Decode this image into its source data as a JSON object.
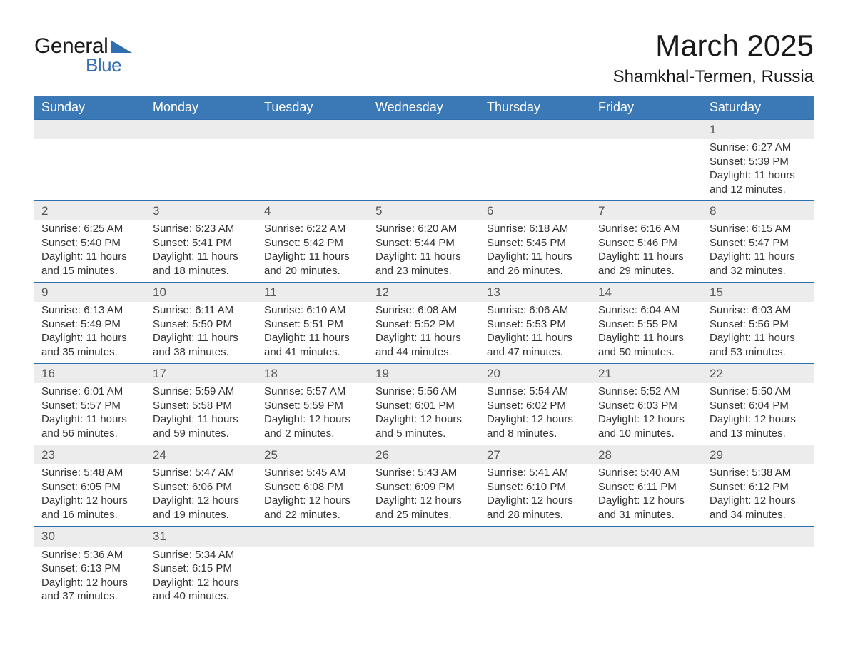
{
  "logo": {
    "text1": "General",
    "text2": "Blue",
    "shape_color": "#2f6fb0"
  },
  "title": {
    "month": "March 2025",
    "location": "Shamkhal-Termen, Russia"
  },
  "colors": {
    "header_bg": "#3b78b6",
    "header_text": "#ffffff",
    "daynum_bg": "#ececec",
    "row_border": "#2f6fb0",
    "body_text": "#333333",
    "daynum_text": "#555555"
  },
  "weekdays": [
    "Sunday",
    "Monday",
    "Tuesday",
    "Wednesday",
    "Thursday",
    "Friday",
    "Saturday"
  ],
  "weeks": [
    [
      null,
      null,
      null,
      null,
      null,
      null,
      {
        "n": "1",
        "sunrise": "Sunrise: 6:27 AM",
        "sunset": "Sunset: 5:39 PM",
        "day1": "Daylight: 11 hours",
        "day2": "and 12 minutes."
      }
    ],
    [
      {
        "n": "2",
        "sunrise": "Sunrise: 6:25 AM",
        "sunset": "Sunset: 5:40 PM",
        "day1": "Daylight: 11 hours",
        "day2": "and 15 minutes."
      },
      {
        "n": "3",
        "sunrise": "Sunrise: 6:23 AM",
        "sunset": "Sunset: 5:41 PM",
        "day1": "Daylight: 11 hours",
        "day2": "and 18 minutes."
      },
      {
        "n": "4",
        "sunrise": "Sunrise: 6:22 AM",
        "sunset": "Sunset: 5:42 PM",
        "day1": "Daylight: 11 hours",
        "day2": "and 20 minutes."
      },
      {
        "n": "5",
        "sunrise": "Sunrise: 6:20 AM",
        "sunset": "Sunset: 5:44 PM",
        "day1": "Daylight: 11 hours",
        "day2": "and 23 minutes."
      },
      {
        "n": "6",
        "sunrise": "Sunrise: 6:18 AM",
        "sunset": "Sunset: 5:45 PM",
        "day1": "Daylight: 11 hours",
        "day2": "and 26 minutes."
      },
      {
        "n": "7",
        "sunrise": "Sunrise: 6:16 AM",
        "sunset": "Sunset: 5:46 PM",
        "day1": "Daylight: 11 hours",
        "day2": "and 29 minutes."
      },
      {
        "n": "8",
        "sunrise": "Sunrise: 6:15 AM",
        "sunset": "Sunset: 5:47 PM",
        "day1": "Daylight: 11 hours",
        "day2": "and 32 minutes."
      }
    ],
    [
      {
        "n": "9",
        "sunrise": "Sunrise: 6:13 AM",
        "sunset": "Sunset: 5:49 PM",
        "day1": "Daylight: 11 hours",
        "day2": "and 35 minutes."
      },
      {
        "n": "10",
        "sunrise": "Sunrise: 6:11 AM",
        "sunset": "Sunset: 5:50 PM",
        "day1": "Daylight: 11 hours",
        "day2": "and 38 minutes."
      },
      {
        "n": "11",
        "sunrise": "Sunrise: 6:10 AM",
        "sunset": "Sunset: 5:51 PM",
        "day1": "Daylight: 11 hours",
        "day2": "and 41 minutes."
      },
      {
        "n": "12",
        "sunrise": "Sunrise: 6:08 AM",
        "sunset": "Sunset: 5:52 PM",
        "day1": "Daylight: 11 hours",
        "day2": "and 44 minutes."
      },
      {
        "n": "13",
        "sunrise": "Sunrise: 6:06 AM",
        "sunset": "Sunset: 5:53 PM",
        "day1": "Daylight: 11 hours",
        "day2": "and 47 minutes."
      },
      {
        "n": "14",
        "sunrise": "Sunrise: 6:04 AM",
        "sunset": "Sunset: 5:55 PM",
        "day1": "Daylight: 11 hours",
        "day2": "and 50 minutes."
      },
      {
        "n": "15",
        "sunrise": "Sunrise: 6:03 AM",
        "sunset": "Sunset: 5:56 PM",
        "day1": "Daylight: 11 hours",
        "day2": "and 53 minutes."
      }
    ],
    [
      {
        "n": "16",
        "sunrise": "Sunrise: 6:01 AM",
        "sunset": "Sunset: 5:57 PM",
        "day1": "Daylight: 11 hours",
        "day2": "and 56 minutes."
      },
      {
        "n": "17",
        "sunrise": "Sunrise: 5:59 AM",
        "sunset": "Sunset: 5:58 PM",
        "day1": "Daylight: 11 hours",
        "day2": "and 59 minutes."
      },
      {
        "n": "18",
        "sunrise": "Sunrise: 5:57 AM",
        "sunset": "Sunset: 5:59 PM",
        "day1": "Daylight: 12 hours",
        "day2": "and 2 minutes."
      },
      {
        "n": "19",
        "sunrise": "Sunrise: 5:56 AM",
        "sunset": "Sunset: 6:01 PM",
        "day1": "Daylight: 12 hours",
        "day2": "and 5 minutes."
      },
      {
        "n": "20",
        "sunrise": "Sunrise: 5:54 AM",
        "sunset": "Sunset: 6:02 PM",
        "day1": "Daylight: 12 hours",
        "day2": "and 8 minutes."
      },
      {
        "n": "21",
        "sunrise": "Sunrise: 5:52 AM",
        "sunset": "Sunset: 6:03 PM",
        "day1": "Daylight: 12 hours",
        "day2": "and 10 minutes."
      },
      {
        "n": "22",
        "sunrise": "Sunrise: 5:50 AM",
        "sunset": "Sunset: 6:04 PM",
        "day1": "Daylight: 12 hours",
        "day2": "and 13 minutes."
      }
    ],
    [
      {
        "n": "23",
        "sunrise": "Sunrise: 5:48 AM",
        "sunset": "Sunset: 6:05 PM",
        "day1": "Daylight: 12 hours",
        "day2": "and 16 minutes."
      },
      {
        "n": "24",
        "sunrise": "Sunrise: 5:47 AM",
        "sunset": "Sunset: 6:06 PM",
        "day1": "Daylight: 12 hours",
        "day2": "and 19 minutes."
      },
      {
        "n": "25",
        "sunrise": "Sunrise: 5:45 AM",
        "sunset": "Sunset: 6:08 PM",
        "day1": "Daylight: 12 hours",
        "day2": "and 22 minutes."
      },
      {
        "n": "26",
        "sunrise": "Sunrise: 5:43 AM",
        "sunset": "Sunset: 6:09 PM",
        "day1": "Daylight: 12 hours",
        "day2": "and 25 minutes."
      },
      {
        "n": "27",
        "sunrise": "Sunrise: 5:41 AM",
        "sunset": "Sunset: 6:10 PM",
        "day1": "Daylight: 12 hours",
        "day2": "and 28 minutes."
      },
      {
        "n": "28",
        "sunrise": "Sunrise: 5:40 AM",
        "sunset": "Sunset: 6:11 PM",
        "day1": "Daylight: 12 hours",
        "day2": "and 31 minutes."
      },
      {
        "n": "29",
        "sunrise": "Sunrise: 5:38 AM",
        "sunset": "Sunset: 6:12 PM",
        "day1": "Daylight: 12 hours",
        "day2": "and 34 minutes."
      }
    ],
    [
      {
        "n": "30",
        "sunrise": "Sunrise: 5:36 AM",
        "sunset": "Sunset: 6:13 PM",
        "day1": "Daylight: 12 hours",
        "day2": "and 37 minutes."
      },
      {
        "n": "31",
        "sunrise": "Sunrise: 5:34 AM",
        "sunset": "Sunset: 6:15 PM",
        "day1": "Daylight: 12 hours",
        "day2": "and 40 minutes."
      },
      null,
      null,
      null,
      null,
      null
    ]
  ]
}
